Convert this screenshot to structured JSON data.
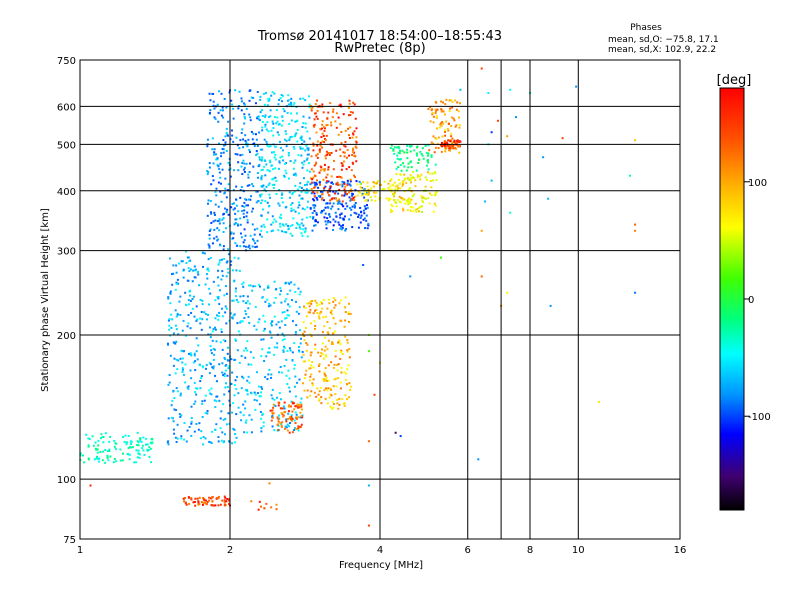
{
  "title_line1": "Tromsø 20141017 18:54:00–18:55:43",
  "title_line2": "RwPretec (8p)",
  "phase_box": {
    "heading": "Phases",
    "line1": "mean, sd,O: −75.8, 17.1",
    "line2": "mean, sd,X: 102.9, 22.2"
  },
  "chart_data": {
    "type": "scatter",
    "xlabel": "Frequency [MHz]",
    "ylabel": "Stationary phase Virtual Height [km]",
    "x_scale": "log",
    "y_scale": "log",
    "xlim": [
      1,
      16
    ],
    "ylim": [
      75,
      750
    ],
    "x_ticks": [
      1,
      2,
      4,
      6,
      8,
      10,
      16
    ],
    "x_minor_ticks": [
      7
    ],
    "y_ticks": [
      75,
      100,
      200,
      300,
      400,
      500,
      600,
      750
    ],
    "grid": true,
    "colorbar": {
      "label": "[deg]",
      "range": [
        -180,
        180
      ],
      "ticks": [
        100,
        0,
        -100
      ]
    },
    "clusters": [
      {
        "f": [
          1.0,
          1.4
        ],
        "h": [
          108,
          125
        ],
        "phase": -40,
        "n": 120
      },
      {
        "f": [
          1.5,
          2.1
        ],
        "h": [
          118,
          300
        ],
        "phase": -80,
        "n": 420
      },
      {
        "f": [
          2.1,
          2.8
        ],
        "h": [
          125,
          260
        ],
        "phase": -75,
        "n": 260
      },
      {
        "f": [
          2.4,
          2.8
        ],
        "h": [
          125,
          145
        ],
        "phase": 150,
        "n": 80
      },
      {
        "f": [
          2.8,
          3.5
        ],
        "h": [
          140,
          240
        ],
        "phase": 120,
        "n": 230
      },
      {
        "f": [
          1.8,
          2.3
        ],
        "h": [
          300,
          650
        ],
        "phase": -95,
        "n": 330
      },
      {
        "f": [
          2.3,
          2.9
        ],
        "h": [
          320,
          650
        ],
        "phase": -70,
        "n": 330
      },
      {
        "f": [
          2.9,
          3.8
        ],
        "h": [
          330,
          420
        ],
        "phase": -110,
        "n": 200
      },
      {
        "f": [
          2.9,
          3.6
        ],
        "h": [
          380,
          620
        ],
        "phase": 155,
        "n": 230
      },
      {
        "f": [
          3.6,
          4.5
        ],
        "h": [
          380,
          420
        ],
        "phase": 110,
        "n": 70
      },
      {
        "f": [
          4.2,
          5.2
        ],
        "h": [
          360,
          440
        ],
        "phase": 100,
        "n": 120
      },
      {
        "f": [
          4.2,
          5.2
        ],
        "h": [
          440,
          500
        ],
        "phase": -20,
        "n": 70
      },
      {
        "f": [
          5.0,
          5.8
        ],
        "h": [
          480,
          620
        ],
        "phase": 130,
        "n": 90
      },
      {
        "f": [
          5.3,
          5.8
        ],
        "h": [
          490,
          510
        ],
        "phase": 160,
        "n": 60
      },
      {
        "f": [
          1.6,
          2.0
        ],
        "h": [
          88,
          92
        ],
        "phase": 160,
        "n": 70
      },
      {
        "f": [
          2.2,
          2.5
        ],
        "h": [
          85,
          90
        ],
        "phase": 150,
        "n": 10
      }
    ],
    "scattered_points": [
      {
        "f": 1.05,
        "h": 97,
        "phase": 170
      },
      {
        "f": 2.4,
        "h": 98,
        "phase": 140
      },
      {
        "f": 3.8,
        "h": 80,
        "phase": 160
      },
      {
        "f": 3.8,
        "h": 97,
        "phase": -80
      },
      {
        "f": 3.8,
        "h": 200,
        "phase": 60
      },
      {
        "f": 3.8,
        "h": 185,
        "phase": 40
      },
      {
        "f": 3.9,
        "h": 150,
        "phase": 160
      },
      {
        "f": 3.8,
        "h": 120,
        "phase": 150
      },
      {
        "f": 4.3,
        "h": 125,
        "phase": -140
      },
      {
        "f": 4.4,
        "h": 123,
        "phase": -120
      },
      {
        "f": 4.0,
        "h": 175,
        "phase": 80
      },
      {
        "f": 3.7,
        "h": 280,
        "phase": -110
      },
      {
        "f": 4.6,
        "h": 265,
        "phase": -90
      },
      {
        "f": 5.3,
        "h": 290,
        "phase": 40
      },
      {
        "f": 6.3,
        "h": 110,
        "phase": -90
      },
      {
        "f": 6.4,
        "h": 265,
        "phase": 150
      },
      {
        "f": 6.4,
        "h": 330,
        "phase": 130
      },
      {
        "f": 6.5,
        "h": 380,
        "phase": -80
      },
      {
        "f": 6.7,
        "h": 420,
        "phase": -80
      },
      {
        "f": 7.0,
        "h": 230,
        "phase": 140
      },
      {
        "f": 7.2,
        "h": 245,
        "phase": 100
      },
      {
        "f": 7.3,
        "h": 360,
        "phase": -40
      },
      {
        "f": 6.6,
        "h": 500,
        "phase": -60
      },
      {
        "f": 6.7,
        "h": 530,
        "phase": -120
      },
      {
        "f": 7.2,
        "h": 520,
        "phase": 130
      },
      {
        "f": 6.9,
        "h": 560,
        "phase": 160
      },
      {
        "f": 6.4,
        "h": 720,
        "phase": 160
      },
      {
        "f": 6.6,
        "h": 640,
        "phase": -60
      },
      {
        "f": 7.3,
        "h": 650,
        "phase": -60
      },
      {
        "f": 7.5,
        "h": 570,
        "phase": -90
      },
      {
        "f": 8.0,
        "h": 640,
        "phase": -30
      },
      {
        "f": 8.5,
        "h": 470,
        "phase": -90
      },
      {
        "f": 8.7,
        "h": 385,
        "phase": -80
      },
      {
        "f": 8.8,
        "h": 230,
        "phase": -90
      },
      {
        "f": 9.9,
        "h": 660,
        "phase": -90
      },
      {
        "f": 9.3,
        "h": 515,
        "phase": 160
      },
      {
        "f": 11.0,
        "h": 145,
        "phase": 110
      },
      {
        "f": 12.7,
        "h": 430,
        "phase": -40
      },
      {
        "f": 13.0,
        "h": 340,
        "phase": 150
      },
      {
        "f": 13.0,
        "h": 330,
        "phase": 140
      },
      {
        "f": 13.0,
        "h": 510,
        "phase": 120
      },
      {
        "f": 13.0,
        "h": 245,
        "phase": -100
      },
      {
        "f": 5.8,
        "h": 650,
        "phase": -80
      }
    ]
  }
}
